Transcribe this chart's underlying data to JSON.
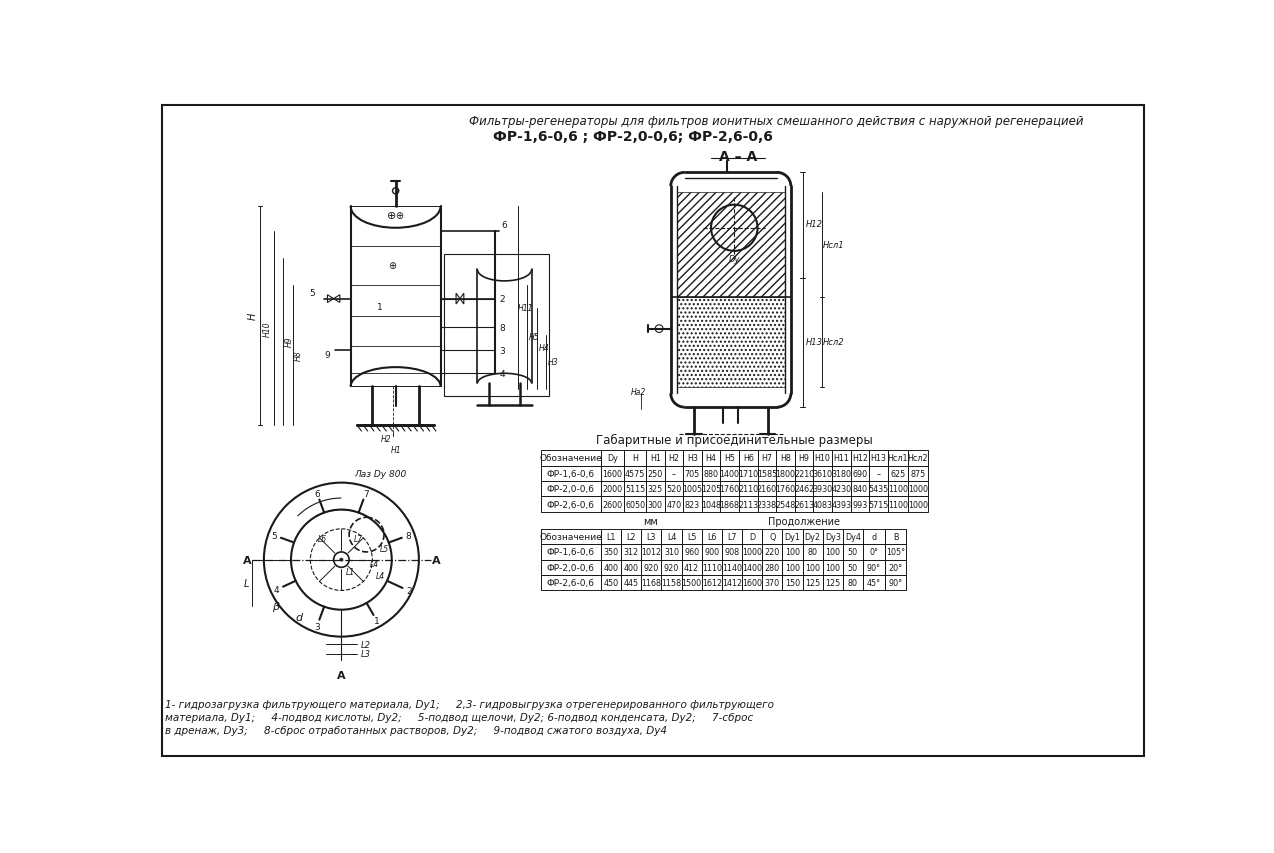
{
  "title_line1": "Фильтры-регенераторы для фильтров ионитных смешанного действия с наружной регенерацией",
  "title_line2": "ФР-1,6-0,6 ; ФР-2,0-0,6; ФР-2,6-0,6",
  "section_label": "А – А",
  "table1_title": "Габаритные и присоединительные размеры",
  "table1_header": [
    "Обозначение",
    "Dy",
    "H",
    "H1",
    "H2",
    "H3",
    "H4",
    "H5",
    "H6",
    "H7",
    "H8",
    "H9",
    "H10",
    "H11",
    "H12",
    "H13",
    "Нсл1",
    "Нсл2"
  ],
  "table1_rows": [
    [
      "ФР-1,6-0,6",
      "1600",
      "4575",
      "250",
      "–",
      "705",
      "880",
      "1400",
      "1710",
      "1585",
      "1800",
      "2210",
      "3610",
      "3180",
      "690",
      "–",
      "625",
      "875"
    ],
    [
      "ФР-2,0-0,6",
      "2000",
      "5115",
      "325",
      "520",
      "1005",
      "1205",
      "1760",
      "2110",
      "2160",
      "1760",
      "2462",
      "3930",
      "4230",
      "840",
      "5435",
      "1100",
      "1000"
    ],
    [
      "ФР-2,6-0,6",
      "2600",
      "6050",
      "300",
      "470",
      "823",
      "1048",
      "1868",
      "2113",
      "2338",
      "2548",
      "2613",
      "4083",
      "4393",
      "993",
      "5715",
      "1100",
      "1000"
    ]
  ],
  "table2_note_mm": "мм",
  "table2_note_cont": "Продолжение",
  "table2_header": [
    "Обозначение",
    "L1",
    "L2",
    "L3",
    "L4",
    "L5",
    "L6",
    "L7",
    "D",
    "Q",
    "Dy1",
    "Dy2",
    "Dy3",
    "Dy4",
    "d",
    "B"
  ],
  "table2_rows": [
    [
      "ФР-1,6-0,6",
      "350",
      "312",
      "1012",
      "310",
      "960",
      "900",
      "908",
      "1000",
      "220",
      "100",
      "80",
      "100",
      "50",
      "0°",
      "105°"
    ],
    [
      "ФР-2,0-0,6",
      "400",
      "400",
      "920",
      "920",
      "412",
      "1110",
      "1140",
      "1400",
      "280",
      "100",
      "100",
      "100",
      "50",
      "90°",
      "20°"
    ],
    [
      "ФР-2,6-0,6",
      "450",
      "445",
      "1168",
      "1158",
      "1500",
      "1612",
      "1412",
      "1600",
      "370",
      "150",
      "125",
      "125",
      "80",
      "45°",
      "90°"
    ]
  ],
  "footnote_lines": [
    "1- гидрозагрузка фильтрующего материала, Dy1;     2,3- гидровыгрузка отрегенерированного фильтрующего",
    "материала, Dy1;     4-подвод кислоты, Dy2;     5-подвод щелочи, Dy2; 6-подвод конденсата, Dy2;     7-сброс",
    "в дренаж, Dy3;     8-сброс отработанных растворов, Dy2;     9-подвод сжатого воздуха, Dy4"
  ],
  "bg_color": "#ffffff",
  "line_color": "#1a1a1a"
}
